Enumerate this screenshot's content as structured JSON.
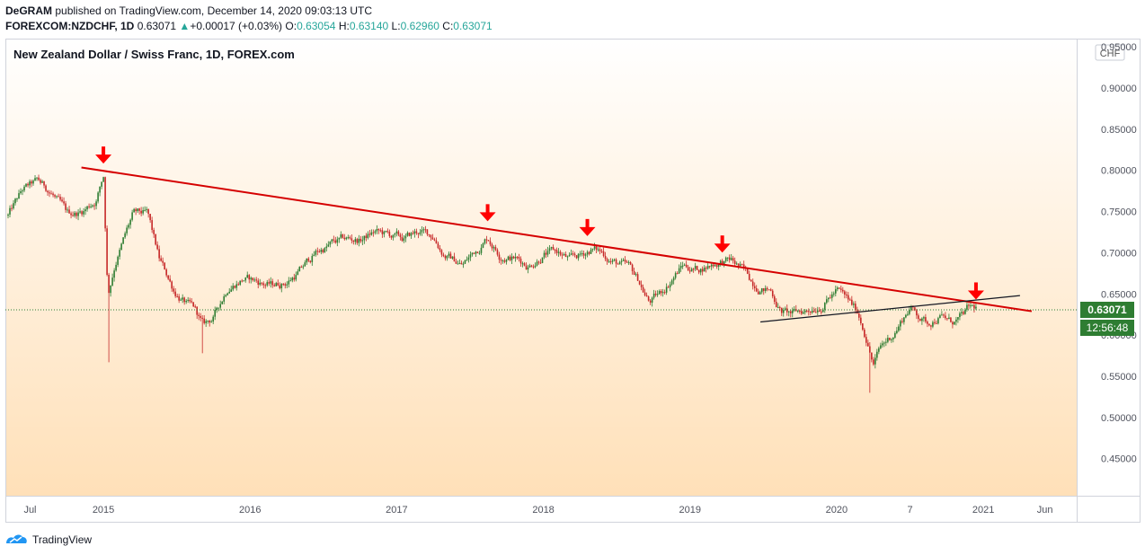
{
  "header": {
    "author": "DeGRAM",
    "published": "published on TradingView.com, December 14, 2020 09:03:13 UTC",
    "symbol": "FOREXCOM:NZDCHF, 1D",
    "last": "0.63071",
    "change": "+0.00017 (+0.03%)",
    "o_label": "O:",
    "o": "0.63054",
    "h_label": "H:",
    "h": "0.63140",
    "l_label": "L:",
    "l": "0.62960",
    "c_label": "C:",
    "c": "0.63071"
  },
  "footer": {
    "brand": "TradingView"
  },
  "colors": {
    "up": "#26a69a",
    "candle_up": "#2e7d32",
    "candle_down": "#c62828",
    "trend": "#d50000",
    "arrow": "#ff0000",
    "badge": "#2e7d32",
    "bg_top": "#ffffff",
    "bg_bottom": "#ffe0b8"
  },
  "chart_data": {
    "type": "candlestick",
    "title": "New Zealand Dollar / Swiss Franc, 1D, FOREX.com",
    "currency": "CHF",
    "ylim": [
      0.405,
      0.96
    ],
    "y_ticks": [
      "0.95000",
      "0.90000",
      "0.85000",
      "0.80000",
      "0.75000",
      "0.70000",
      "0.65000",
      "0.60000",
      "0.55000",
      "0.50000",
      "0.45000"
    ],
    "x_range": [
      2014.35,
      2021.6
    ],
    "x_ticks": [
      {
        "label": "Jul",
        "t": 2014.5
      },
      {
        "label": "2015",
        "t": 2015.0
      },
      {
        "label": "2016",
        "t": 2016.0
      },
      {
        "label": "2017",
        "t": 2017.0
      },
      {
        "label": "2018",
        "t": 2018.0
      },
      {
        "label": "2019",
        "t": 2019.0
      },
      {
        "label": "2020",
        "t": 2020.0
      },
      {
        "label": "7",
        "t": 2020.5
      },
      {
        "label": "2021",
        "t": 2021.0
      },
      {
        "label": "Jun",
        "t": 2021.42
      }
    ],
    "price_path": [
      [
        2014.35,
        0.745
      ],
      [
        2014.45,
        0.775
      ],
      [
        2014.55,
        0.785
      ],
      [
        2014.65,
        0.772
      ],
      [
        2014.75,
        0.745
      ],
      [
        2014.85,
        0.75
      ],
      [
        2014.95,
        0.765
      ],
      [
        2015.0,
        0.795
      ],
      [
        2015.03,
        0.65
      ],
      [
        2015.08,
        0.69
      ],
      [
        2015.2,
        0.745
      ],
      [
        2015.3,
        0.745
      ],
      [
        2015.38,
        0.69
      ],
      [
        2015.48,
        0.655
      ],
      [
        2015.58,
        0.635
      ],
      [
        2015.62,
        0.63
      ],
      [
        2015.68,
        0.61
      ],
      [
        2015.75,
        0.62
      ],
      [
        2015.85,
        0.66
      ],
      [
        2015.95,
        0.67
      ],
      [
        2016.05,
        0.665
      ],
      [
        2016.15,
        0.66
      ],
      [
        2016.25,
        0.665
      ],
      [
        2016.35,
        0.68
      ],
      [
        2016.45,
        0.7
      ],
      [
        2016.55,
        0.71
      ],
      [
        2016.65,
        0.715
      ],
      [
        2016.75,
        0.715
      ],
      [
        2016.85,
        0.725
      ],
      [
        2016.95,
        0.72
      ],
      [
        2017.05,
        0.715
      ],
      [
        2017.15,
        0.725
      ],
      [
        2017.25,
        0.72
      ],
      [
        2017.32,
        0.7
      ],
      [
        2017.4,
        0.69
      ],
      [
        2017.45,
        0.685
      ],
      [
        2017.55,
        0.705
      ],
      [
        2017.62,
        0.72
      ],
      [
        2017.7,
        0.7
      ],
      [
        2017.8,
        0.695
      ],
      [
        2017.9,
        0.685
      ],
      [
        2018.0,
        0.7
      ],
      [
        2018.1,
        0.7
      ],
      [
        2018.18,
        0.69
      ],
      [
        2018.25,
        0.695
      ],
      [
        2018.33,
        0.705
      ],
      [
        2018.4,
        0.7
      ],
      [
        2018.48,
        0.69
      ],
      [
        2018.58,
        0.68
      ],
      [
        2018.65,
        0.665
      ],
      [
        2018.72,
        0.64
      ],
      [
        2018.8,
        0.65
      ],
      [
        2018.88,
        0.67
      ],
      [
        2018.95,
        0.685
      ],
      [
        2019.05,
        0.68
      ],
      [
        2019.12,
        0.685
      ],
      [
        2019.2,
        0.69
      ],
      [
        2019.28,
        0.69
      ],
      [
        2019.35,
        0.68
      ],
      [
        2019.42,
        0.665
      ],
      [
        2019.48,
        0.66
      ],
      [
        2019.55,
        0.655
      ],
      [
        2019.62,
        0.63
      ],
      [
        2019.7,
        0.625
      ],
      [
        2019.8,
        0.63
      ],
      [
        2019.9,
        0.64
      ],
      [
        2020.0,
        0.655
      ],
      [
        2020.08,
        0.64
      ],
      [
        2020.15,
        0.625
      ],
      [
        2020.2,
        0.6
      ],
      [
        2020.25,
        0.565
      ],
      [
        2020.3,
        0.585
      ],
      [
        2020.38,
        0.6
      ],
      [
        2020.45,
        0.62
      ],
      [
        2020.5,
        0.635
      ],
      [
        2020.55,
        0.625
      ],
      [
        2020.62,
        0.615
      ],
      [
        2020.7,
        0.625
      ],
      [
        2020.78,
        0.615
      ],
      [
        2020.85,
        0.62
      ],
      [
        2020.9,
        0.63
      ],
      [
        2020.95,
        0.631
      ]
    ],
    "resistance_line": [
      [
        2014.85,
        0.8035
      ],
      [
        2021.33,
        0.629
      ]
    ],
    "support_line": [
      [
        2019.48,
        0.616
      ],
      [
        2021.25,
        0.648
      ]
    ],
    "arrows_at": [
      [
        2015.0,
        0.805
      ],
      [
        2017.62,
        0.735
      ],
      [
        2018.3,
        0.717
      ],
      [
        2019.22,
        0.697
      ],
      [
        2020.95,
        0.64
      ]
    ],
    "last_price": "0.63071",
    "countdown": "12:56:48"
  }
}
